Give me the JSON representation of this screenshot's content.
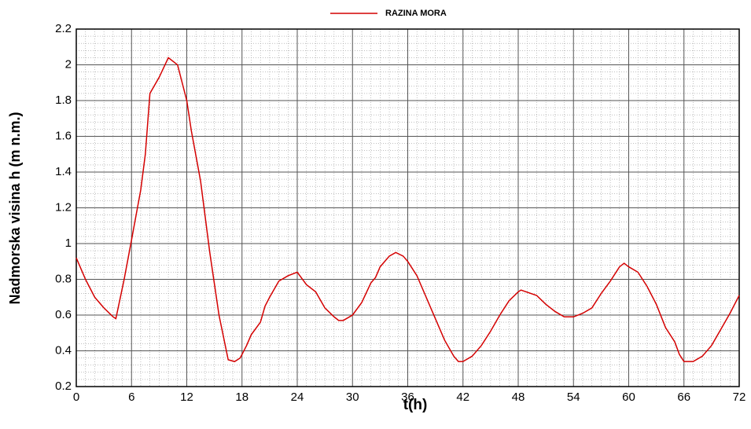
{
  "chart_data": {
    "type": "line",
    "legend": "top",
    "x_label": "t(h)",
    "y_label": "Nadmorska visina h (m n.m.)",
    "xlim": [
      0,
      72
    ],
    "xticks": [
      0,
      6,
      12,
      18,
      24,
      30,
      36,
      42,
      48,
      54,
      60,
      66,
      72
    ],
    "ylim": [
      0.2,
      2.2
    ],
    "yticks": [
      0.2,
      0.4,
      0.6,
      0.8,
      1,
      1.2,
      1.4,
      1.6,
      1.8,
      2,
      2.2
    ],
    "grid": true,
    "minor_grid": true,
    "series": [
      {
        "name": "RAZINA MORA",
        "color": "#d40000",
        "x": [
          0,
          1,
          2,
          3,
          4,
          4.3,
          5.2,
          6,
          7,
          7.5,
          8,
          9,
          10,
          11,
          12,
          12.5,
          13.5,
          14.5,
          15.5,
          16.5,
          17.2,
          17.8,
          18.5,
          19,
          20,
          20.5,
          21,
          22,
          23,
          24,
          25,
          26,
          27,
          28,
          28.5,
          29,
          30,
          31,
          32,
          32.5,
          33,
          34,
          34.7,
          35.5,
          36,
          37,
          38,
          39,
          40,
          41,
          41.5,
          42,
          43,
          44,
          45,
          46,
          47,
          48,
          48.3,
          50,
          51,
          52,
          53,
          54,
          55,
          56,
          57,
          58,
          59,
          59.5,
          60,
          61,
          62,
          63,
          64,
          65,
          65.5,
          66,
          67,
          68,
          69,
          70,
          71,
          72
        ],
        "values": [
          0.92,
          0.8,
          0.7,
          0.64,
          0.59,
          0.58,
          0.8,
          1.02,
          1.3,
          1.5,
          1.84,
          1.93,
          2.04,
          2.0,
          1.8,
          1.63,
          1.35,
          0.95,
          0.6,
          0.35,
          0.34,
          0.36,
          0.43,
          0.49,
          0.56,
          0.65,
          0.7,
          0.79,
          0.82,
          0.84,
          0.77,
          0.73,
          0.64,
          0.59,
          0.57,
          0.57,
          0.6,
          0.67,
          0.78,
          0.81,
          0.87,
          0.93,
          0.95,
          0.93,
          0.9,
          0.82,
          0.7,
          0.58,
          0.46,
          0.37,
          0.34,
          0.34,
          0.37,
          0.43,
          0.51,
          0.6,
          0.68,
          0.73,
          0.74,
          0.71,
          0.66,
          0.62,
          0.59,
          0.59,
          0.61,
          0.64,
          0.72,
          0.79,
          0.87,
          0.89,
          0.87,
          0.84,
          0.76,
          0.66,
          0.53,
          0.45,
          0.38,
          0.34,
          0.34,
          0.37,
          0.43,
          0.52,
          0.61,
          0.71
        ]
      }
    ]
  }
}
